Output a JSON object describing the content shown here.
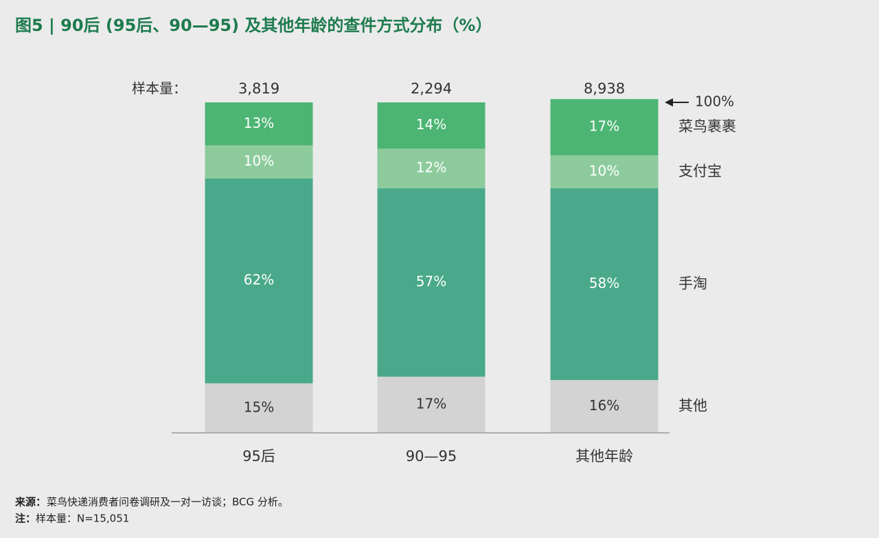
{
  "chart_data": {
    "type": "stacked_bar",
    "title": "图5 | 90后 (95后、90—95) 及其他年龄的查件方式分布（%）",
    "sample_size_label": "样本量：",
    "categories": [
      "95后",
      "90—95",
      "其他年龄"
    ],
    "sample_sizes": [
      {
        "value": 3819,
        "label": "3,819"
      },
      {
        "value": 2294,
        "label": "2,294"
      },
      {
        "value": 8938,
        "label": "8,938"
      }
    ],
    "top_annotation": "100%",
    "ylim": [
      0,
      100
    ],
    "series": [
      {
        "name": "其他",
        "color": "#d3d3d3",
        "label_color": "#333333",
        "values": [
          15,
          17,
          16
        ],
        "value_labels": [
          "15%",
          "17%",
          "16%"
        ]
      },
      {
        "name": "手淘",
        "color": "#4aa98a",
        "label_color": "#ffffff",
        "values": [
          62,
          57,
          58
        ],
        "value_labels": [
          "62%",
          "57%",
          "58%"
        ]
      },
      {
        "name": "支付宝",
        "color": "#8dcb9d",
        "label_color": "#ffffff",
        "values": [
          10,
          12,
          10
        ],
        "value_labels": [
          "10%",
          "12%",
          "10%"
        ]
      },
      {
        "name": "菜鸟裹裹",
        "color": "#4cb574",
        "label_color": "#ffffff",
        "values": [
          13,
          14,
          17
        ],
        "value_labels": [
          "13%",
          "14%",
          "17%"
        ]
      }
    ],
    "source_label": "来源：",
    "source": "菜鸟快递消费者问卷调研及一对一访谈；BCG 分析。",
    "note_label": "注：",
    "note": "样本量：N=15,051"
  }
}
